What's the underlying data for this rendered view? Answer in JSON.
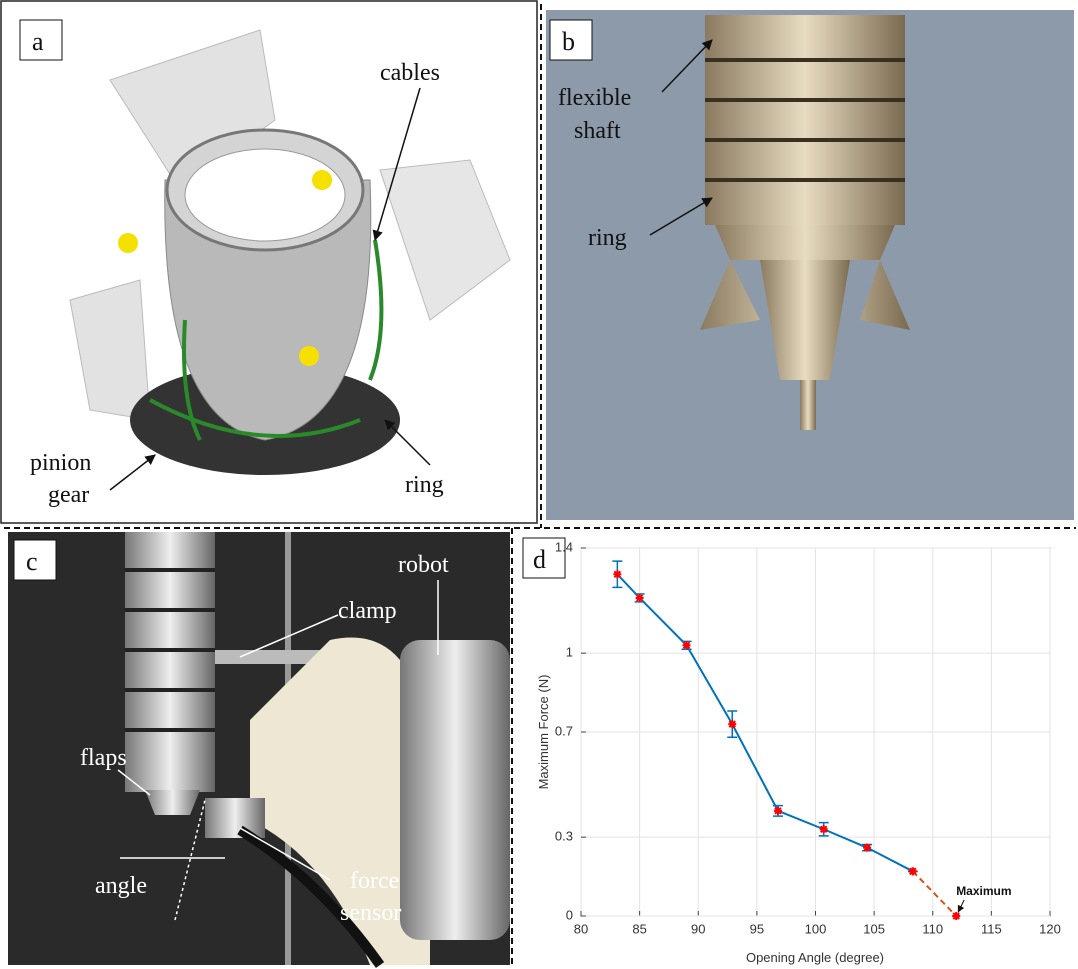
{
  "panels": [
    {
      "label": "a",
      "annotations": [
        {
          "lines": [
            "cables"
          ]
        },
        {
          "lines": [
            "pinion",
            "gear"
          ]
        },
        {
          "lines": [
            "ring"
          ]
        }
      ]
    },
    {
      "label": "b",
      "annotations": [
        {
          "lines": [
            "flexible",
            "shaft"
          ]
        },
        {
          "lines": [
            "ring"
          ]
        }
      ]
    },
    {
      "label": "c",
      "annotations": [
        {
          "lines": [
            "clamp"
          ]
        },
        {
          "lines": [
            "robot"
          ]
        },
        {
          "lines": [
            "flaps"
          ]
        },
        {
          "lines": [
            "angle"
          ]
        },
        {
          "lines": [
            "force",
            "sensor"
          ]
        }
      ]
    },
    {
      "label": "d"
    }
  ],
  "chart_data": {
    "type": "line",
    "xlabel": "Opening Angle (degree)",
    "ylabel": "Maximum Force (N)",
    "xlim": [
      80,
      120
    ],
    "ylim": [
      0,
      1.4
    ],
    "xticks": [
      80,
      85,
      90,
      95,
      100,
      105,
      110,
      115,
      120
    ],
    "yticks": [
      0,
      0.3,
      0.7,
      1,
      1.4
    ],
    "grid": true,
    "series": [
      {
        "color": "#0072bd",
        "marker_color": "#ff0000",
        "x": [
          83.1,
          85,
          89,
          92.9,
          96.8,
          100.7,
          104.4,
          108.3
        ],
        "values": [
          1.3,
          1.21,
          1.03,
          0.73,
          0.4,
          0.33,
          0.26,
          0.17
        ],
        "errors": [
          0.05,
          0.015,
          0.015,
          0.05,
          0.02,
          0.025,
          0.012,
          0
        ]
      },
      {
        "color": "#d95319",
        "marker_color": "#ff0000",
        "dashed": true,
        "x": [
          108.3,
          112
        ],
        "values": [
          0.17,
          0
        ]
      }
    ],
    "annotation": {
      "text": "Maximum",
      "x": 112,
      "y": 0
    }
  }
}
